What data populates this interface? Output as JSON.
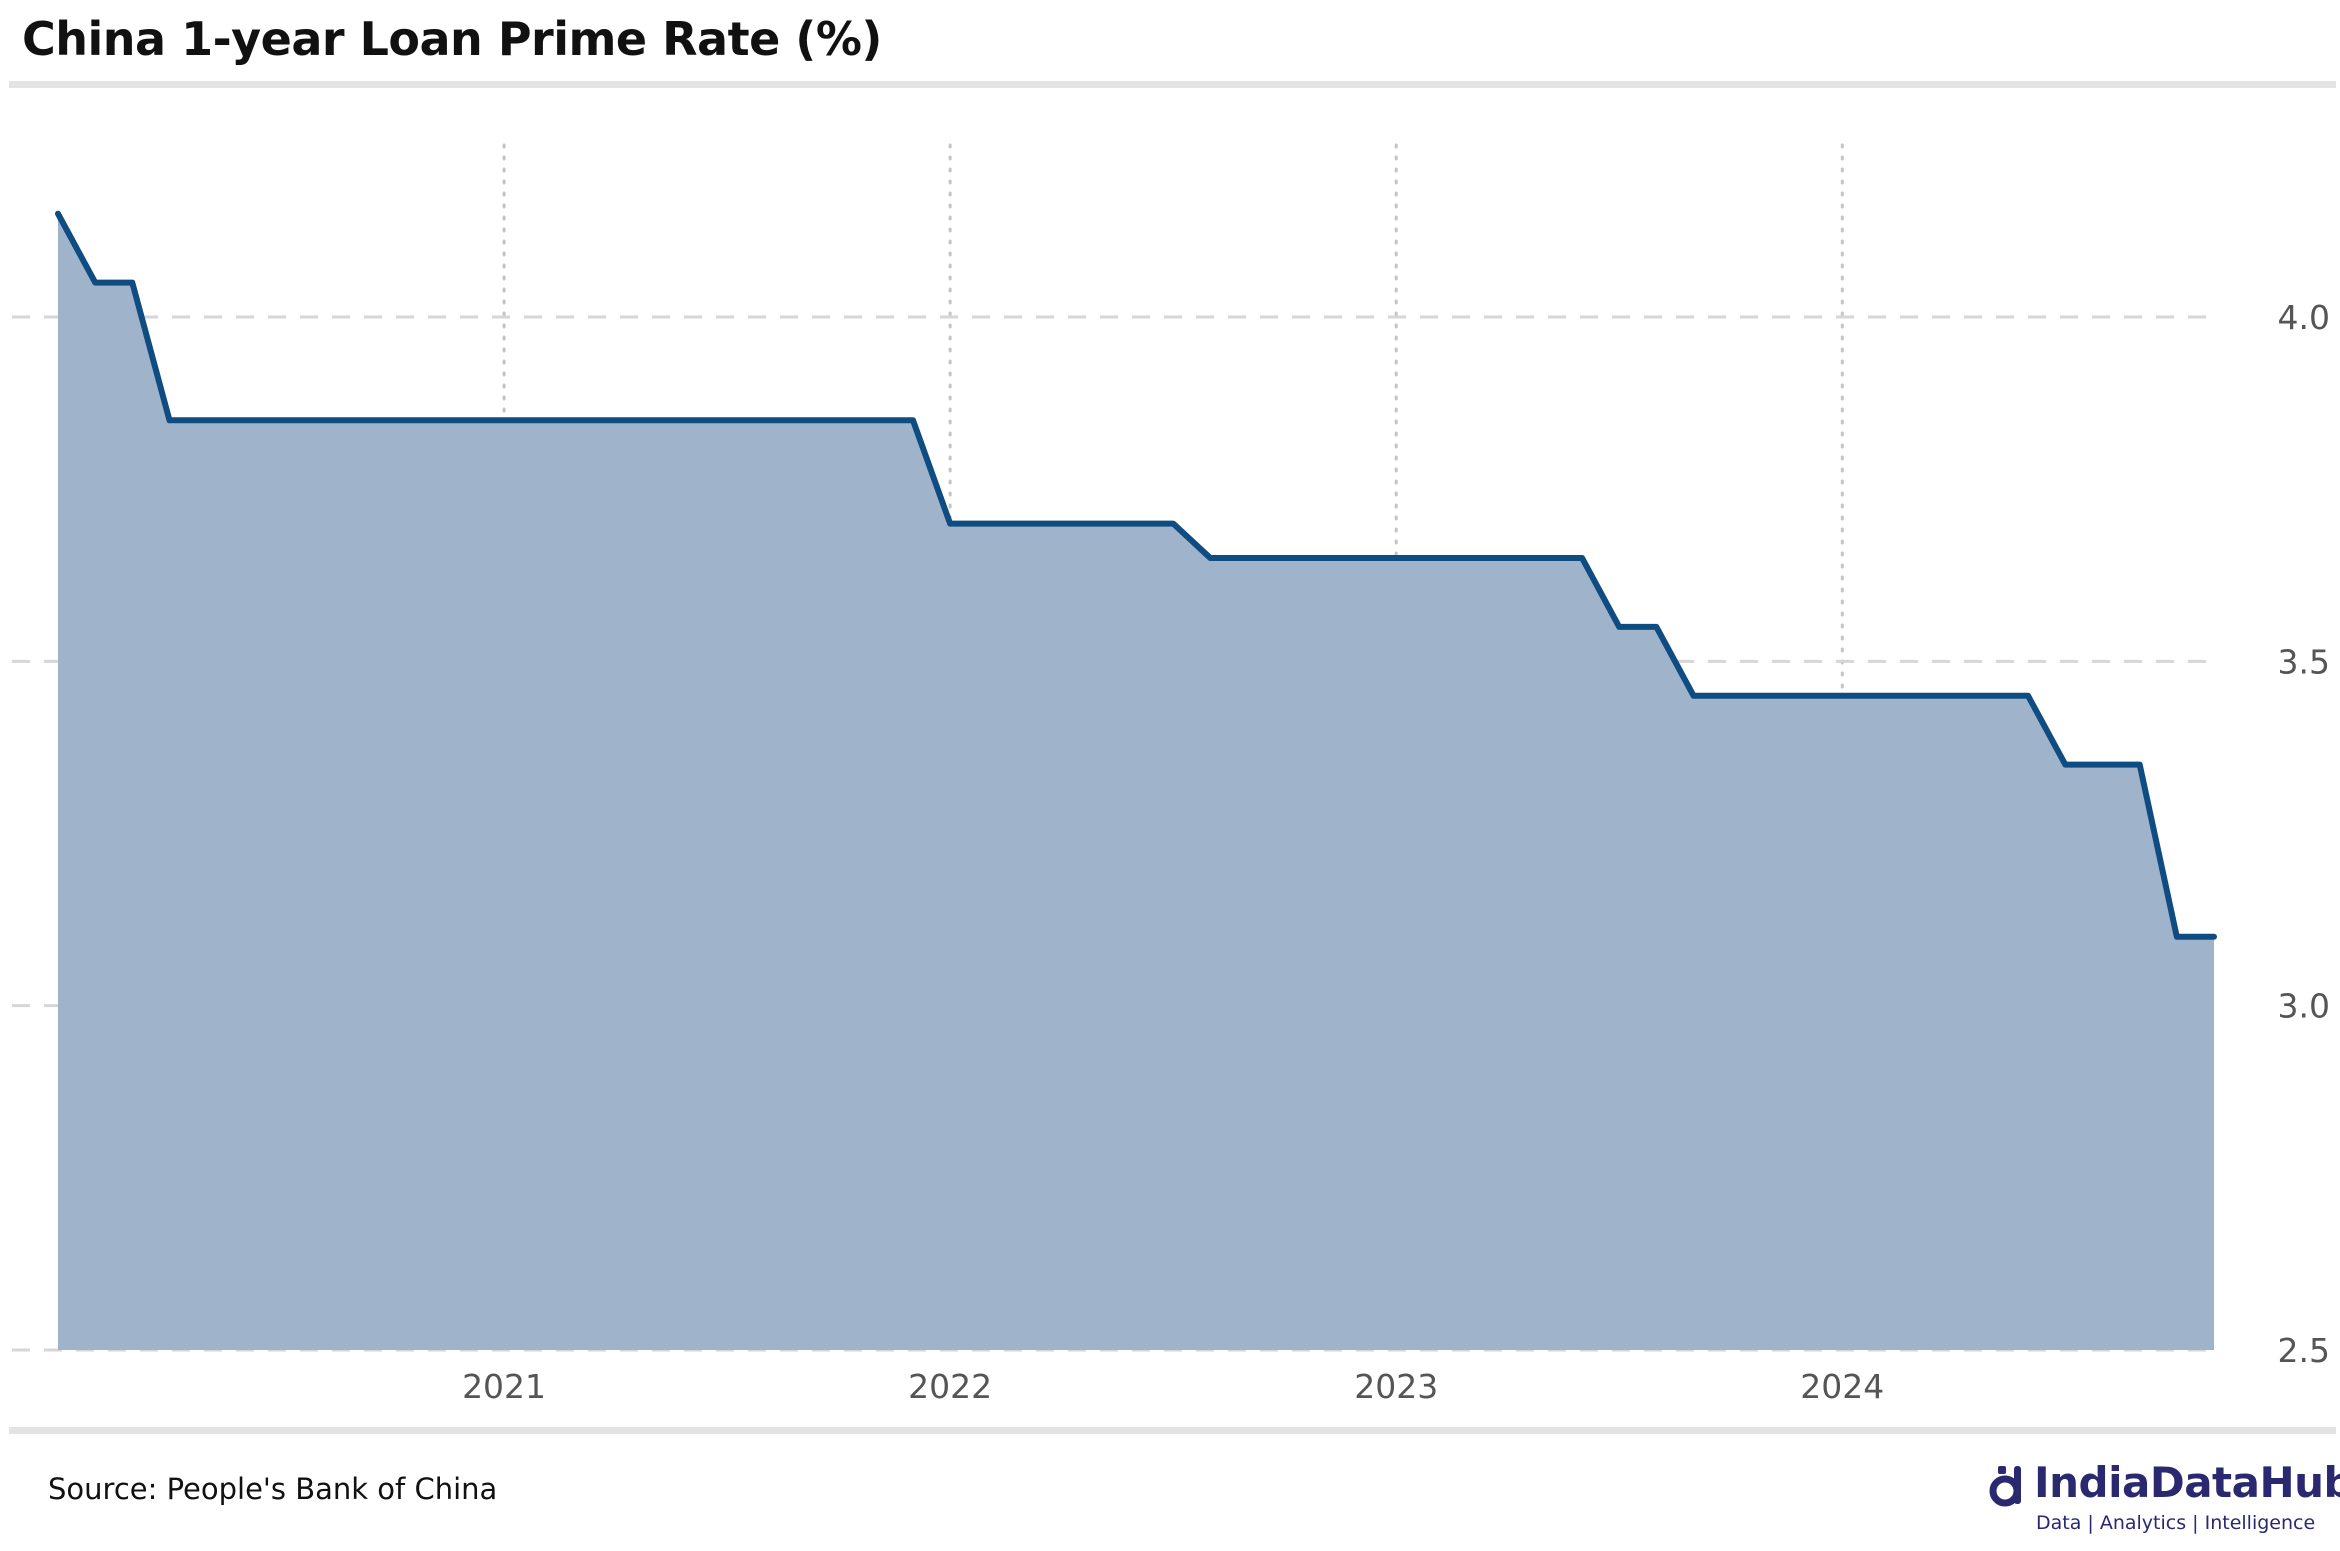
{
  "header": {
    "title": "China 1-year Loan Prime Rate (%)"
  },
  "footer": {
    "source": "Source: People's Bank of China",
    "brand_name": "IndiaDataHub",
    "brand_tagline": "Data | Analytics | Intelligence",
    "brand_color": "#2a2970"
  },
  "chart_data": {
    "type": "area",
    "title": "China 1-year Loan Prime Rate (%)",
    "xlabel": "",
    "ylabel": "",
    "x_ticks": [
      "2021",
      "2022",
      "2023",
      "2024"
    ],
    "y_ticks": [
      "2.5",
      "3.0",
      "3.5",
      "4.0"
    ],
    "ylim": [
      2.5,
      4.3
    ],
    "xlim": [
      "2020-01",
      "2024-11"
    ],
    "y_axis_position": "right",
    "grid": {
      "vertical": "dotted",
      "horizontal": "dashed"
    },
    "line_color": "#0f4c81",
    "fill_color": "#9fb4cb",
    "series": [
      {
        "x": [
          "2020-01",
          "2020-02",
          "2020-03",
          "2020-04",
          "2020-05",
          "2020-06",
          "2020-07",
          "2020-08",
          "2020-09",
          "2020-10",
          "2020-11",
          "2020-12",
          "2021-01",
          "2021-02",
          "2021-03",
          "2021-04",
          "2021-05",
          "2021-06",
          "2021-07",
          "2021-08",
          "2021-09",
          "2021-10",
          "2021-11",
          "2021-12",
          "2022-01",
          "2022-02",
          "2022-03",
          "2022-04",
          "2022-05",
          "2022-06",
          "2022-07",
          "2022-08",
          "2022-09",
          "2022-10",
          "2022-11",
          "2022-12",
          "2023-01",
          "2023-02",
          "2023-03",
          "2023-04",
          "2023-05",
          "2023-06",
          "2023-07",
          "2023-08",
          "2023-09",
          "2023-10",
          "2023-11",
          "2023-12",
          "2024-01",
          "2024-02",
          "2024-03",
          "2024-04",
          "2024-05",
          "2024-06",
          "2024-07",
          "2024-08",
          "2024-09",
          "2024-10",
          "2024-11"
        ],
        "values": [
          4.15,
          4.05,
          4.05,
          3.85,
          3.85,
          3.85,
          3.85,
          3.85,
          3.85,
          3.85,
          3.85,
          3.85,
          3.85,
          3.85,
          3.85,
          3.85,
          3.85,
          3.85,
          3.85,
          3.85,
          3.85,
          3.85,
          3.85,
          3.85,
          3.7,
          3.7,
          3.7,
          3.7,
          3.7,
          3.7,
          3.7,
          3.65,
          3.65,
          3.65,
          3.65,
          3.65,
          3.65,
          3.65,
          3.65,
          3.65,
          3.65,
          3.65,
          3.55,
          3.55,
          3.45,
          3.45,
          3.45,
          3.45,
          3.45,
          3.45,
          3.45,
          3.45,
          3.45,
          3.45,
          3.35,
          3.35,
          3.35,
          3.1,
          3.1
        ]
      }
    ]
  }
}
